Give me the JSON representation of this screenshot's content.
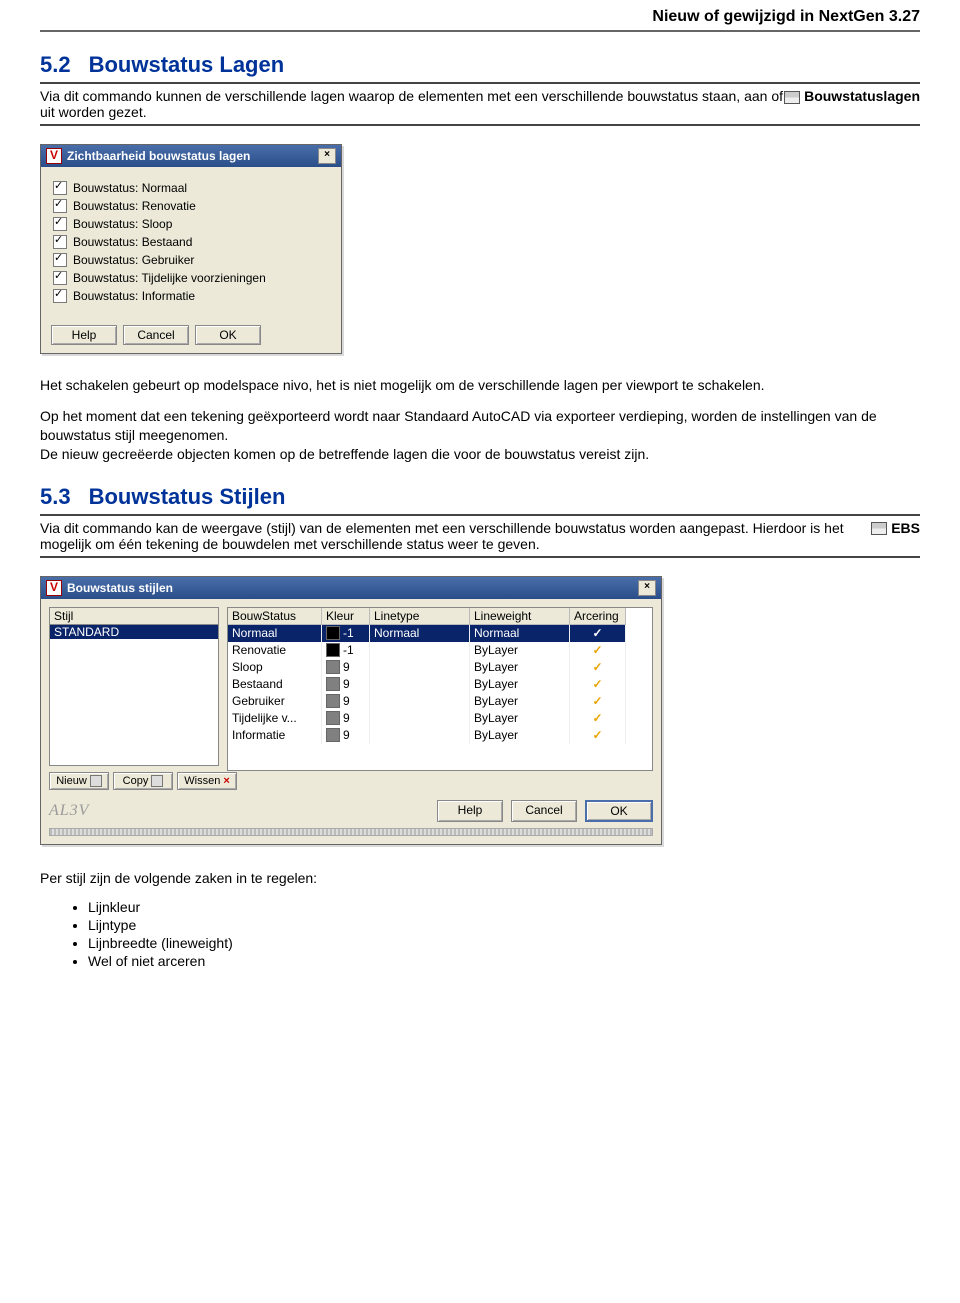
{
  "header": {
    "title": "Nieuw of gewijzigd in NextGen 3.27"
  },
  "sec52": {
    "num": "5.2",
    "title": "Bouwstatus Lagen",
    "cmd": "Bouwstatuslagen",
    "intro": "Via dit commando kunnen de verschillende lagen waarop de elementen met een verschillende bouwstatus staan, aan of uit worden gezet.",
    "dialog": {
      "title": "Zichtbaarheid bouwstatus lagen",
      "items": [
        "Bouwstatus: Normaal",
        "Bouwstatus: Renovatie",
        "Bouwstatus: Sloop",
        "Bouwstatus: Bestaand",
        "Bouwstatus: Gebruiker",
        "Bouwstatus: Tijdelijke voorzieningen",
        "Bouwstatus: Informatie"
      ],
      "buttons": {
        "help": "Help",
        "cancel": "Cancel",
        "ok": "OK"
      }
    },
    "after1": "Het schakelen gebeurt op modelspace nivo, het is niet mogelijk om de verschillende lagen per viewport te schakelen.",
    "after2": "Op het moment dat een tekening geëxporteerd wordt naar Standaard AutoCAD via exporteer verdieping, worden de instellingen van de bouwstatus stijl meegenomen.",
    "after3": "De nieuw gecreëerde objecten komen op de betreffende lagen die voor de bouwstatus vereist zijn."
  },
  "sec53": {
    "num": "5.3",
    "title": "Bouwstatus Stijlen",
    "cmd": "EBS",
    "intro": "Via dit commando kan de weergave (stijl) van de elementen met een verschillende bouwstatus worden aangepast. Hierdoor is het mogelijk om één tekening de bouwdelen met verschillende status weer te geven.",
    "dialog": {
      "title": "Bouwstatus stijlen",
      "leftLabel": "Stijl",
      "leftItem": "STANDARD",
      "cols": {
        "c1": "BouwStatus",
        "c2": "Kleur",
        "c3": "Linetype",
        "c4": "Lineweight",
        "c5": "Arcering"
      },
      "rows": [
        {
          "bs": "Normaal",
          "kleur": "-1",
          "sw": "black",
          "lt": "Normaal",
          "lw": "Normaal",
          "sel": true
        },
        {
          "bs": "Renovatie",
          "kleur": "-1",
          "sw": "black",
          "lt": "",
          "lw": "ByLayer"
        },
        {
          "bs": "Sloop",
          "kleur": "9",
          "sw": "gray",
          "lt": "",
          "lw": "ByLayer"
        },
        {
          "bs": "Bestaand",
          "kleur": "9",
          "sw": "gray",
          "lt": "",
          "lw": "ByLayer"
        },
        {
          "bs": "Gebruiker",
          "kleur": "9",
          "sw": "gray",
          "lt": "",
          "lw": "ByLayer"
        },
        {
          "bs": "Tijdelijke v...",
          "kleur": "9",
          "sw": "gray",
          "lt": "",
          "lw": "ByLayer"
        },
        {
          "bs": "Informatie",
          "kleur": "9",
          "sw": "gray",
          "lt": "",
          "lw": "ByLayer"
        }
      ],
      "leftButtons": {
        "nieuw": "Nieuw",
        "copy": "Copy",
        "wissen": "Wissen"
      },
      "brand": "AL3V",
      "buttons": {
        "help": "Help",
        "cancel": "Cancel",
        "ok": "OK"
      }
    },
    "afterIntro": "Per stijl zijn de volgende zaken in te regelen:",
    "bullets": [
      "Lijnkleur",
      "Lijntype",
      "Lijnbreedte (lineweight)",
      "Wel of niet arceren"
    ]
  }
}
